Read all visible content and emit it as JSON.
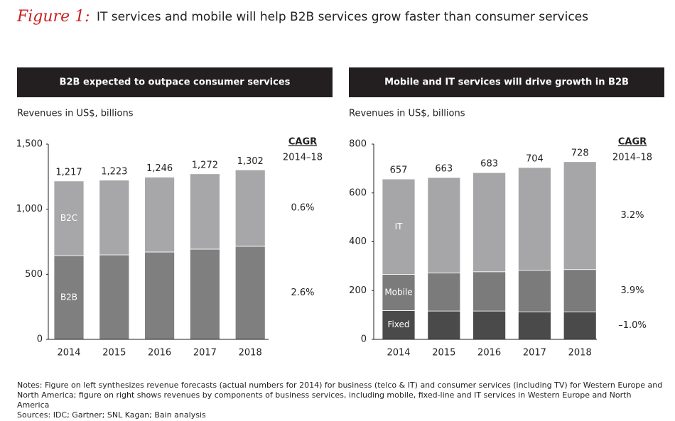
{
  "figure_label": "Figure 1:",
  "title": "IT services and mobile will help B2B services grow faster than consumer services",
  "notes": "Notes: Figure on left synthesizes revenue forecasts (actual numbers for 2014) for business (telco & IT) and consumer services (including TV) for Western Europe and North America; figure on right shows revenues by components of business services, including mobile, fixed-line and IT services in Western Europe and North America",
  "sources": "Sources: IDC; Gartner; SNL Kagan; Bain analysis",
  "chart_data": [
    {
      "type": "bar",
      "stacked": true,
      "title": "B2B expected to outpace consumer services",
      "y_label": "Revenues in US$, billions",
      "categories": [
        "2014",
        "2015",
        "2016",
        "2017",
        "2018"
      ],
      "series": [
        {
          "name": "B2B",
          "color": "#7f7f80",
          "values": [
            644,
            649,
            671,
            693,
            715
          ],
          "cagr": "2.6%"
        },
        {
          "name": "B2C",
          "color": "#a7a7a9",
          "values": [
            573,
            574,
            575,
            579,
            587
          ],
          "cagr": "0.6%"
        }
      ],
      "totals": [
        1217,
        1223,
        1246,
        1272,
        1302
      ],
      "total_labels": [
        "1,217",
        "1,223",
        "1,246",
        "1,272",
        "1,302"
      ],
      "cagr_title": "CAGR",
      "cagr_period": "2014–18",
      "ylim": [
        0,
        1500
      ],
      "yticks": [
        0,
        500,
        {
          "value": 1000,
          "label": "1,000"
        },
        {
          "value": 1500,
          "label": "1,500"
        }
      ]
    },
    {
      "type": "bar",
      "stacked": true,
      "title": "Mobile and IT services will drive growth in B2B",
      "y_label": "Revenues in US$, billions",
      "categories": [
        "2014",
        "2015",
        "2016",
        "2017",
        "2018"
      ],
      "series": [
        {
          "name": "Fixed",
          "color": "#4a4a4b",
          "values": [
            118,
            116,
            116,
            113,
            113
          ],
          "cagr": "–1.0%"
        },
        {
          "name": "Mobile",
          "color": "#7b7b7c",
          "values": [
            148,
            156,
            161,
            170,
            173
          ],
          "cagr": "3.9%"
        },
        {
          "name": "IT",
          "color": "#a6a6a8",
          "values": [
            391,
            391,
            406,
            421,
            442
          ],
          "cagr": "3.2%"
        }
      ],
      "totals": [
        657,
        663,
        683,
        704,
        728
      ],
      "cagr_title": "CAGR",
      "cagr_period": "2014–18",
      "ylim": [
        0,
        800
      ],
      "yticks": [
        0,
        200,
        400,
        600,
        800
      ]
    }
  ]
}
